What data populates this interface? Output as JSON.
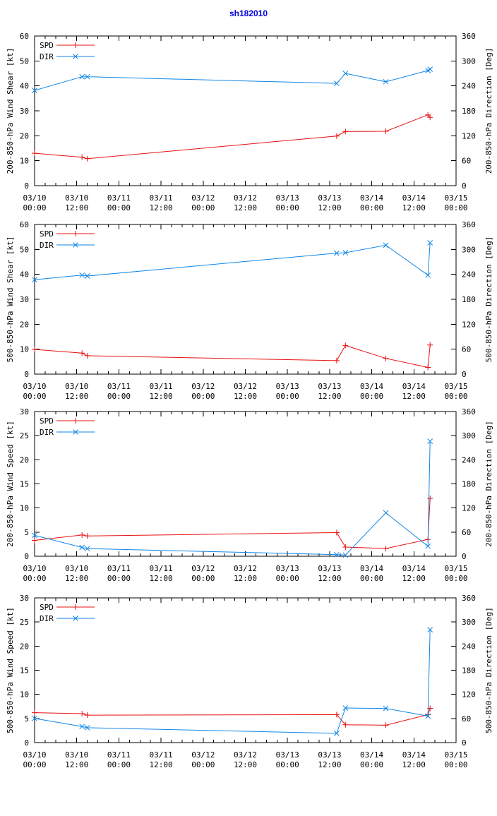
{
  "title": "sh182010",
  "title_color": "#0000dd",
  "background_color": "#ffffff",
  "x_axis": {
    "range_hours": [
      0,
      120
    ],
    "major_tick_step_hours": 12,
    "minor_tick_step_hours": 3,
    "tick_labels": [
      {
        "line1": "03/10",
        "line2": "00:00"
      },
      {
        "line1": "03/10",
        "line2": "12:00"
      },
      {
        "line1": "03/11",
        "line2": "00:00"
      },
      {
        "line1": "03/11",
        "line2": "12:00"
      },
      {
        "line1": "03/12",
        "line2": "00:00"
      },
      {
        "line1": "03/12",
        "line2": "12:00"
      },
      {
        "line1": "03/13",
        "line2": "00:00"
      },
      {
        "line1": "03/13",
        "line2": "12:00"
      },
      {
        "line1": "03/14",
        "line2": "00:00"
      },
      {
        "line1": "03/14",
        "line2": "12:00"
      },
      {
        "line1": "03/15",
        "line2": "00:00"
      }
    ]
  },
  "legend": {
    "position": "top-left",
    "items": [
      {
        "label": "SPD",
        "color": "#e81010",
        "marker": "plus"
      },
      {
        "label": "DIR",
        "color": "#1086e8",
        "marker": "cross"
      }
    ]
  },
  "chart_data": [
    {
      "id": "200-850-hPa-wind-shear",
      "type": "line",
      "grid": false,
      "ylabel_left": "200-850-hPa Wind Shear [kt]",
      "ylabel_right": "200-850-hPa Direction [Deg]",
      "ylim_left": [
        0,
        60
      ],
      "ytick_left": 10,
      "ylim_right": [
        0,
        360
      ],
      "ytick_right": 60,
      "x_hours": [
        0,
        13.5,
        15,
        86,
        88.5,
        100,
        112,
        112.6
      ],
      "series": [
        {
          "name": "SPD",
          "axis": "left",
          "marker": "plus",
          "color": "#e81010",
          "values": [
            13.0,
            11.4,
            10.8,
            19.9,
            21.7,
            21.8,
            28.4,
            27.4
          ]
        },
        {
          "name": "DIR",
          "axis": "right",
          "marker": "cross",
          "color": "#1086e8",
          "values": [
            229,
            262,
            262,
            246,
            270,
            250,
            277,
            280
          ]
        }
      ]
    },
    {
      "id": "500-850-hPa-wind-shear",
      "type": "line",
      "grid": false,
      "ylabel_left": "500-850-hPa Wind Shear [kt]",
      "ylabel_right": "500-850-hPa Direction [Deg]",
      "ylim_left": [
        0,
        60
      ],
      "ytick_left": 10,
      "ylim_right": [
        0,
        360
      ],
      "ytick_right": 60,
      "x_hours": [
        0,
        13.5,
        15,
        86,
        88.5,
        100,
        112,
        112.6
      ],
      "series": [
        {
          "name": "SPD",
          "axis": "left",
          "marker": "plus",
          "color": "#e81010",
          "values": [
            9.9,
            8.4,
            7.4,
            5.4,
            11.5,
            6.3,
            2.7,
            11.7
          ]
        },
        {
          "name": "DIR",
          "axis": "right",
          "marker": "cross",
          "color": "#1086e8",
          "values": [
            227,
            238,
            236,
            291,
            292,
            310,
            238,
            316
          ]
        }
      ]
    },
    {
      "id": "200-850-hPa-wind-speed",
      "type": "line",
      "grid": false,
      "ylabel_left": "200-850-hPa Wind Speed [kt]",
      "ylabel_right": "200-850-hPa Direction [Deg]",
      "ylim_left": [
        0,
        30
      ],
      "ytick_left": 5,
      "ylim_right": [
        0,
        360
      ],
      "ytick_right": 60,
      "x_hours": [
        0,
        13.5,
        15,
        86,
        88.5,
        100,
        112,
        112.6
      ],
      "series": [
        {
          "name": "SPD",
          "axis": "left",
          "marker": "plus",
          "color": "#e81010",
          "values": [
            3.3,
            4.4,
            4.2,
            4.9,
            1.9,
            1.6,
            3.5,
            12.0
          ]
        },
        {
          "name": "DIR",
          "axis": "right",
          "marker": "cross",
          "color": "#1086e8",
          "values": [
            52,
            22,
            19,
            4,
            3,
            108,
            25,
            286
          ]
        }
      ]
    },
    {
      "id": "500-850-hPa-wind-speed",
      "type": "line",
      "grid": false,
      "ylabel_left": "500-850-hPa Wind Speed [kt]",
      "ylabel_right": "500-850-hPa Direction [Deg]",
      "ylim_left": [
        0,
        30
      ],
      "ytick_left": 5,
      "ylim_right": [
        0,
        360
      ],
      "ytick_right": 60,
      "x_hours": [
        0,
        13.5,
        15,
        86,
        88.5,
        100,
        112,
        112.6
      ],
      "series": [
        {
          "name": "SPD",
          "axis": "left",
          "marker": "plus",
          "color": "#e81010",
          "values": [
            6.2,
            6.0,
            5.7,
            5.8,
            3.7,
            3.6,
            5.8,
            7.1
          ]
        },
        {
          "name": "DIR",
          "axis": "right",
          "marker": "cross",
          "color": "#1086e8",
          "values": [
            60,
            40,
            37,
            23,
            86,
            85,
            66,
            281
          ]
        }
      ]
    }
  ]
}
